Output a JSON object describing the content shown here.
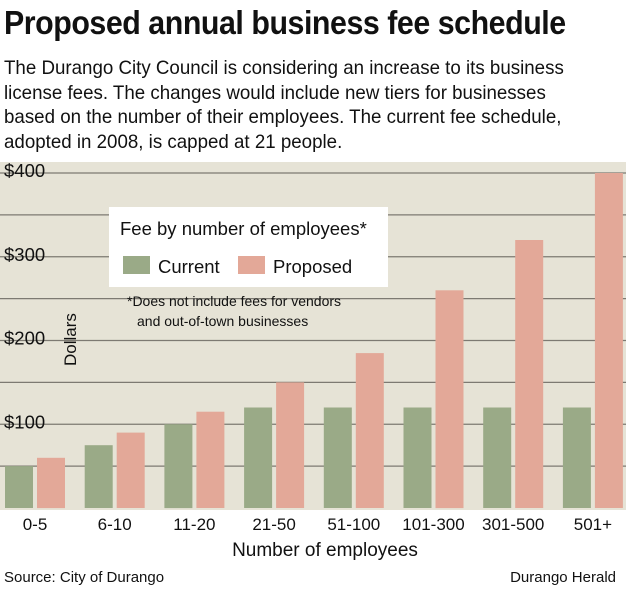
{
  "header": {
    "title": "Proposed annual business fee schedule",
    "subtitle": "The Durango City Council is considering an increase to its business license fees. The changes would include new tiers for businesses based on the number of their employees. The current fee schedule, adopted in 2008, is capped at 21 people."
  },
  "footer": {
    "source": "Source: City of Durango",
    "credit": "Durango Herald"
  },
  "colors": {
    "panel": "#e6e3d6",
    "grid": "#7d7a72",
    "current": "#9aaa87",
    "proposed": "#e3a898"
  },
  "chart_data": {
    "type": "bar",
    "title": "Proposed annual business fee schedule",
    "xlabel": "Number of employees",
    "ylabel": "Dollars",
    "ylim": [
      0,
      400
    ],
    "y_ticks": [
      "$100",
      "$200",
      "$300",
      "$400"
    ],
    "y_tick_values": [
      100,
      200,
      300,
      400
    ],
    "categories": [
      "0-5",
      "6-10",
      "11-20",
      "21-50",
      "51-100",
      "101-300",
      "301-500",
      "501+"
    ],
    "series": [
      {
        "name": "Current",
        "values": [
          50,
          75,
          100,
          120,
          120,
          120,
          120,
          120
        ]
      },
      {
        "name": "Proposed",
        "values": [
          60,
          90,
          115,
          150,
          185,
          260,
          320,
          400
        ]
      }
    ],
    "legend": {
      "title": "Fee by number of employees*",
      "position": "top-left"
    },
    "footnote": [
      "*Does not include fees for vendors",
      "and out-of-town businesses"
    ],
    "grid": true
  }
}
